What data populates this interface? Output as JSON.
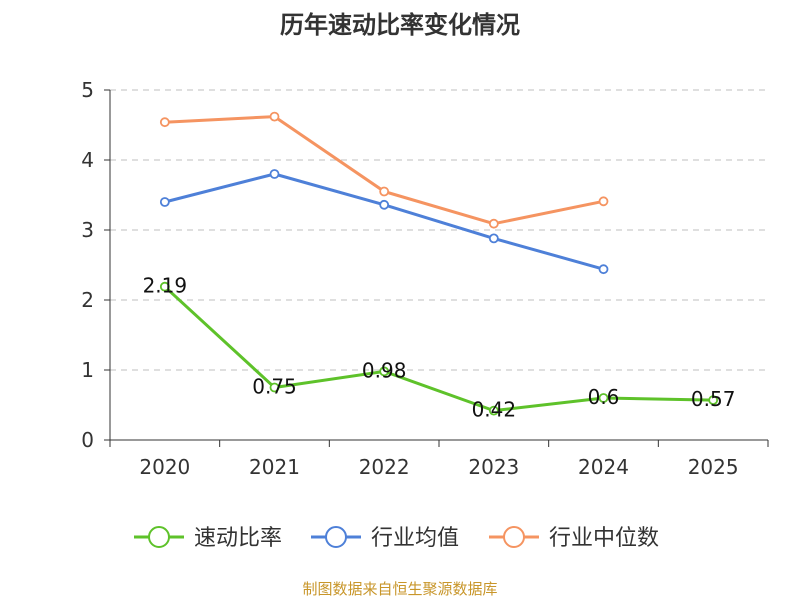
{
  "chart_data": {
    "type": "line",
    "title": "历年速动比率变化情况",
    "categories": [
      "2020",
      "2021",
      "2022",
      "2023",
      "2024",
      "2025"
    ],
    "ylim": [
      0,
      5
    ],
    "yticks": [
      0,
      1,
      2,
      3,
      4,
      5
    ],
    "grid": true,
    "legend_position": "bottom",
    "series": [
      {
        "name": "速动比率",
        "color": "#5ec22a",
        "values": [
          2.19,
          0.75,
          0.98,
          0.42,
          0.6,
          0.57
        ],
        "labels": [
          "2.19",
          "0.75",
          "0.98",
          "0.42",
          "0.6",
          "0.57"
        ]
      },
      {
        "name": "行业均值",
        "color": "#4e80d8",
        "values": [
          3.4,
          3.8,
          3.36,
          2.88,
          2.44,
          null
        ]
      },
      {
        "name": "行业中位数",
        "color": "#f59461",
        "values": [
          4.54,
          4.62,
          3.55,
          3.09,
          3.41,
          null
        ]
      }
    ]
  },
  "source": "制图数据来自恒生聚源数据库"
}
